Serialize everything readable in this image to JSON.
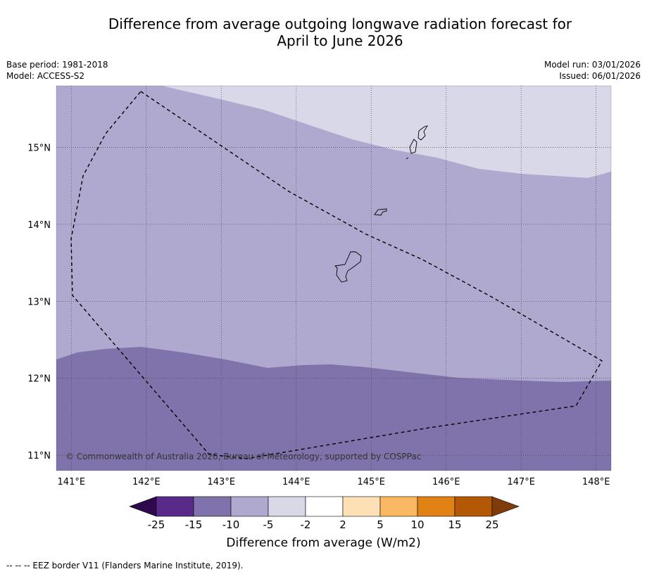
{
  "title": {
    "line1": "Difference from average outgoing longwave radiation forecast for",
    "line2": "April to June 2026"
  },
  "meta": {
    "base_period": "Base period: 1981-2018",
    "model": "Model: ACCESS-S2",
    "model_run": "Model run: 03/01/2026",
    "issued": "Issued: 06/01/2026"
  },
  "map": {
    "lon_ticks": [
      "141°E",
      "142°E",
      "143°E",
      "144°E",
      "145°E",
      "146°E",
      "147°E",
      "148°E"
    ],
    "lat_ticks": [
      "15°N",
      "14°N",
      "13°N",
      "12°N",
      "11°N"
    ],
    "lon_values": [
      141,
      142,
      143,
      144,
      145,
      146,
      147,
      148
    ],
    "lat_values": [
      15,
      14,
      13,
      12,
      11
    ],
    "lon_range": [
      140.8,
      148.2
    ],
    "lat_range": [
      10.8,
      15.8
    ],
    "copyright": "© Commonwealth of Australia 2026, Bureau of Meteorology, supported by COSPPac",
    "zones": [
      {
        "category": "-5 to -2",
        "color": "#d8d8e9"
      },
      {
        "category": "-10 to -5",
        "color": "#b0a9cf"
      },
      {
        "category": "-15 to -10",
        "color": "#8073ab"
      }
    ]
  },
  "colorbar": {
    "ticks": [
      "-25",
      "-15",
      "-10",
      "-5",
      "-2",
      "2",
      "5",
      "10",
      "15",
      "25"
    ],
    "colors": [
      "#5a2a8a",
      "#8073ab",
      "#b0a9cf",
      "#d8d8e9",
      "#ffffff",
      "#fde0b6",
      "#fbb863",
      "#e08214",
      "#b35806"
    ],
    "under_color": "#2d0a4e",
    "over_color": "#7f3b08",
    "label": "Difference from average (W/m2)"
  },
  "footnote": "--  --  -- EEZ border V11 (Flanders Marine Institute, 2019)."
}
